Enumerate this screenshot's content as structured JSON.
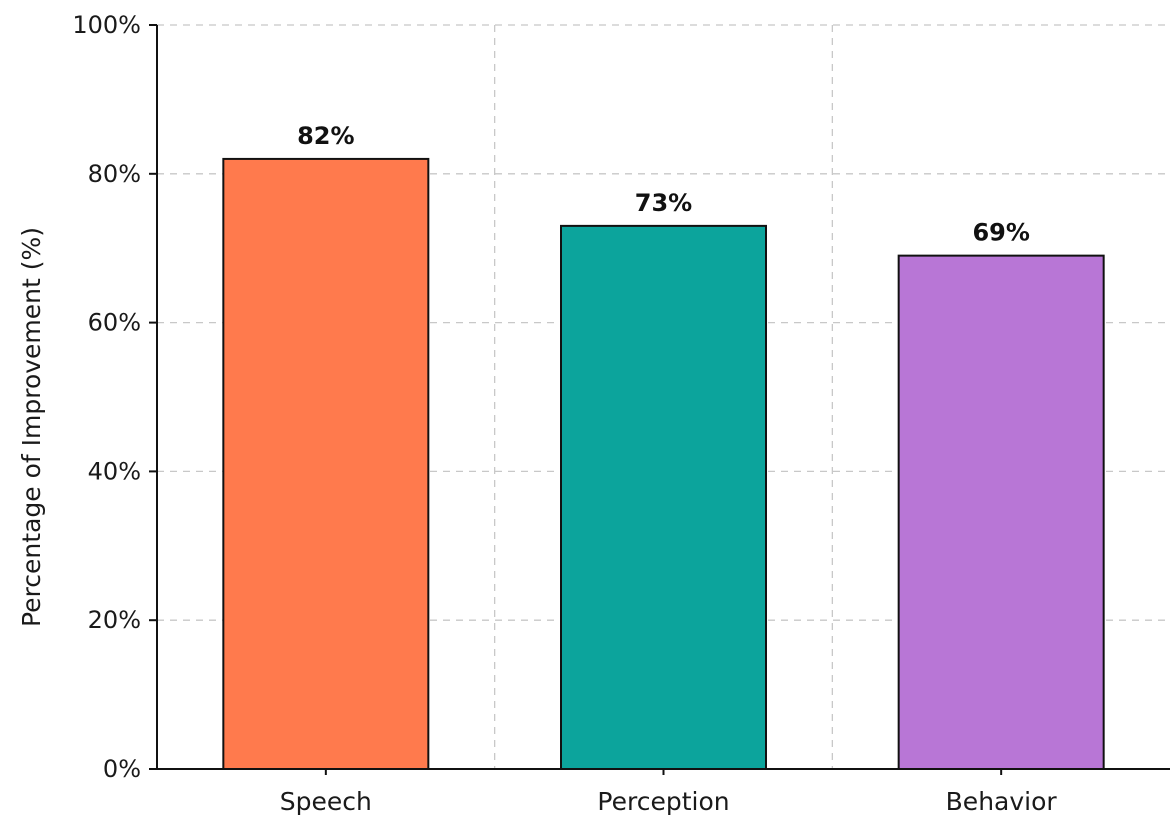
{
  "chart_data": {
    "type": "bar",
    "title": "",
    "xlabel": "",
    "ylabel": "Percentage of Improvement (%)",
    "categories": [
      "Speech",
      "Perception",
      "Behavior"
    ],
    "values": [
      82,
      73,
      69
    ],
    "value_labels": [
      "82%",
      "73%",
      "69%"
    ],
    "colors": [
      "#ff7a4d",
      "#0ca49c",
      "#b876d6"
    ],
    "ylim": [
      0,
      100
    ],
    "yticks": [
      0,
      20,
      40,
      60,
      80,
      100
    ],
    "ytick_labels": [
      "0%",
      "20%",
      "40%",
      "60%",
      "80%",
      "100%"
    ],
    "grid": true,
    "grid_style": "dashed",
    "legend": "none"
  }
}
